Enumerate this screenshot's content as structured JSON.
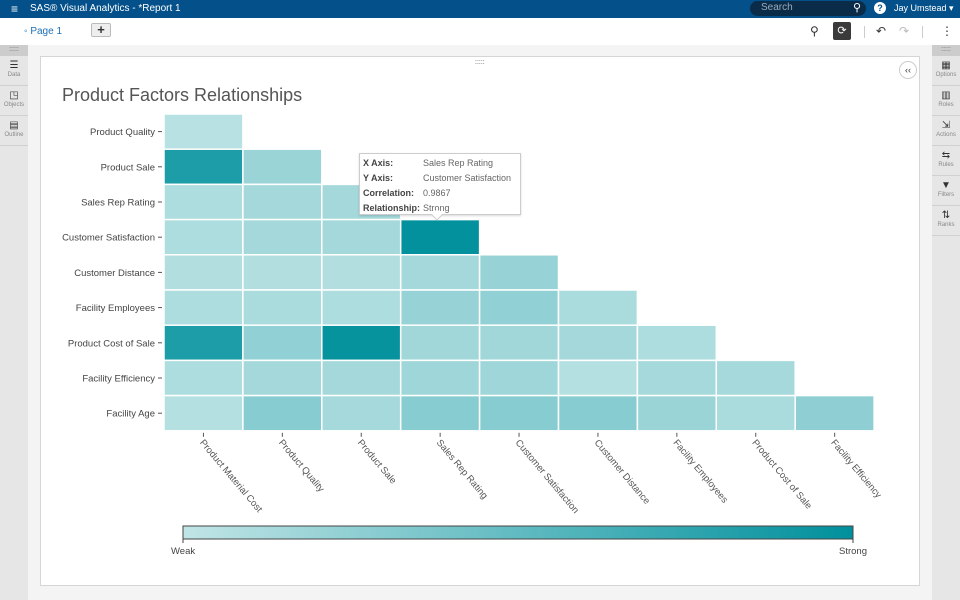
{
  "app": {
    "title": "SAS® Visual Analytics - *Report 1",
    "search_placeholder": "Search",
    "user": "Jay Umstead ▾",
    "help": "?"
  },
  "toolbar": {
    "page_tab": "Page 1",
    "add_page": "+",
    "interactions_icon": "⚲",
    "auto_icon": "⟳",
    "undo": "↶",
    "redo": "↷",
    "more": "⋮"
  },
  "left_panel": [
    "Data",
    "Objects",
    "Outline"
  ],
  "right_panel": [
    "Options",
    "Roles",
    "Actions",
    "Rules",
    "Filters",
    "Ranks"
  ],
  "collapse": "‹‹",
  "chart_data": {
    "type": "heatmap",
    "title": "Product Factors Relationships",
    "y_categories": [
      "Product Quality",
      "Product Sale",
      "Sales Rep Rating",
      "Customer Satisfaction",
      "Customer Distance",
      "Facility Employees",
      "Product Cost of Sale",
      "Facility Efficiency",
      "Facility Age"
    ],
    "x_categories": [
      "Product Material Cost",
      "Product Quality",
      "Product Sale",
      "Sales Rep Rating",
      "Customer Satisfaction",
      "Customer Distance",
      "Facility Employees",
      "Product Cost of Sale",
      "Facility Efficiency"
    ],
    "values": [
      [
        0.05
      ],
      [
        0.85,
        0.2
      ],
      [
        0.1,
        0.15,
        0.15
      ],
      [
        0.1,
        0.15,
        0.15,
        0.9867
      ],
      [
        0.08,
        0.08,
        0.08,
        0.15,
        0.22
      ],
      [
        0.1,
        0.12,
        0.1,
        0.22,
        0.25,
        0.12
      ],
      [
        0.85,
        0.25,
        0.97,
        0.16,
        0.16,
        0.15,
        0.1
      ],
      [
        0.1,
        0.15,
        0.15,
        0.18,
        0.18,
        0.06,
        0.14,
        0.14
      ],
      [
        0.06,
        0.3,
        0.14,
        0.3,
        0.3,
        0.3,
        0.2,
        0.12,
        0.26
      ]
    ],
    "legend": {
      "min_label": "Weak",
      "max_label": "Strong",
      "min_color": "#c1e5e6",
      "max_color": "#00909c"
    },
    "tooltip": {
      "x_label": "X Axis:",
      "x_value": "Sales Rep Rating",
      "y_label": "Y Axis:",
      "y_value": "Customer Satisfaction",
      "corr_label": "Correlation:",
      "corr_value": "0.9867",
      "rel_label": "Relationship:",
      "rel_value": "Strong"
    }
  },
  "colors": {
    "header": "#03508a",
    "accent": "#1c6fb5"
  }
}
